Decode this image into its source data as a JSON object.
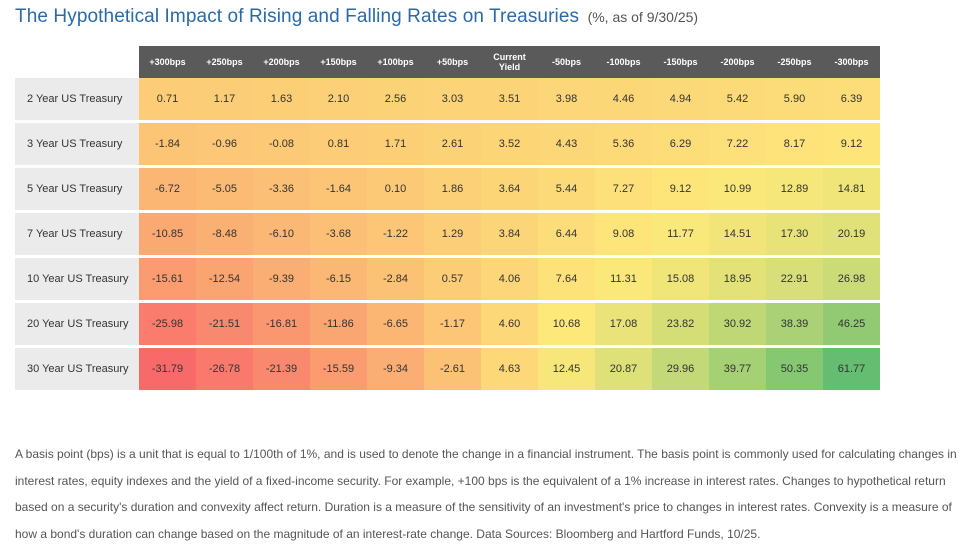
{
  "header": {
    "title": "The Hypothetical Impact of Rising and Falling Rates on Treasuries",
    "subtitle": "(%, as of 9/30/25)"
  },
  "chart_data": {
    "type": "heatmap",
    "title": "The Hypothetical Impact of Rising and Falling Rates on Treasuries",
    "subtitle": "(%, as of 9/30/25)",
    "columns": [
      "+300bps",
      "+250bps",
      "+200bps",
      "+150bps",
      "+100bps",
      "+50bps",
      "Current Yield",
      "-50bps",
      "-100bps",
      "-150bps",
      "-200bps",
      "-250bps",
      "-300bps"
    ],
    "rows": [
      {
        "label": "2 Year US Treasury",
        "values": [
          "0.71",
          "1.17",
          "1.63",
          "2.10",
          "2.56",
          "3.03",
          "3.51",
          "3.98",
          "4.46",
          "4.94",
          "5.42",
          "5.90",
          "6.39"
        ]
      },
      {
        "label": "3 Year US Treasury",
        "values": [
          "-1.84",
          "-0.96",
          "-0.08",
          "0.81",
          "1.71",
          "2.61",
          "3.52",
          "4.43",
          "5.36",
          "6.29",
          "7.22",
          "8.17",
          "9.12"
        ]
      },
      {
        "label": "5 Year US Treasury",
        "values": [
          "-6.72",
          "-5.05",
          "-3.36",
          "-1.64",
          "0.10",
          "1.86",
          "3.64",
          "5.44",
          "7.27",
          "9.12",
          "10.99",
          "12.89",
          "14.81"
        ]
      },
      {
        "label": "7 Year US Treasury",
        "values": [
          "-10.85",
          "-8.48",
          "-6.10",
          "-3.68",
          "-1.22",
          "1.29",
          "3.84",
          "6.44",
          "9.08",
          "11.77",
          "14.51",
          "17.30",
          "20.19"
        ]
      },
      {
        "label": "10 Year US Treasury",
        "values": [
          "-15.61",
          "-12.54",
          "-9.39",
          "-6.15",
          "-2.84",
          "0.57",
          "4.06",
          "7.64",
          "11.31",
          "15.08",
          "18.95",
          "22.91",
          "26.98"
        ]
      },
      {
        "label": "20 Year US Treasury",
        "values": [
          "-25.98",
          "-21.51",
          "-16.81",
          "-11.86",
          "-6.65",
          "-1.17",
          "4.60",
          "10.68",
          "17.08",
          "23.82",
          "30.92",
          "38.39",
          "46.25"
        ]
      },
      {
        "label": "30 Year US Treasury",
        "values": [
          "-31.79",
          "-26.78",
          "-21.39",
          "-15.59",
          "-9.34",
          "-2.61",
          "4.63",
          "12.45",
          "20.87",
          "29.96",
          "39.77",
          "50.35",
          "61.77"
        ]
      }
    ],
    "color_scale": {
      "low": "#f86a6a",
      "mid": "#fde97a",
      "high": "#64bd70"
    }
  },
  "footnote": "A basis point (bps) is a unit that is equal to 1/100th of 1%, and is used to denote the change in a financial instrument. The basis point is commonly used for calculating changes in interest rates, equity indexes and the yield of a fixed-income security. For example, +100 bps is the equivalent of a 1% increase in interest rates. Changes to hypothetical return based on a security's duration and convexity affect return. Duration is a measure of the sensitivity of an investment's price to changes in interest rates. Convexity is a measure of how a bond's duration can change based on the magnitude of an interest-rate change. Data Sources: Bloomberg and Hartford Funds, 10/25."
}
